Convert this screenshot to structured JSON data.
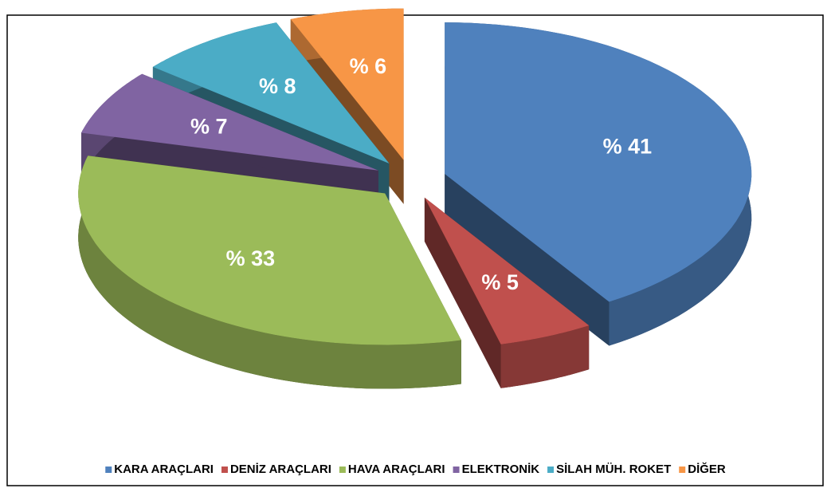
{
  "chart_data": {
    "type": "pie",
    "categories": [
      "KARA ARAÇLARI",
      "DENİZ ARAÇLARI",
      "HAVA ARAÇLARI",
      "ELEKTRONİK",
      "SİLAH MÜH. ROKET",
      "DİĞER"
    ],
    "values": [
      41,
      5,
      33,
      7,
      8,
      6
    ],
    "value_labels": [
      "% 41",
      "% 5",
      "% 33",
      "% 7",
      "% 8",
      "% 6"
    ],
    "colors": [
      "#4f81bd",
      "#c0504d",
      "#9bbb59",
      "#8064a2",
      "#4bacc6",
      "#f79646"
    ],
    "legend": "bottom"
  }
}
